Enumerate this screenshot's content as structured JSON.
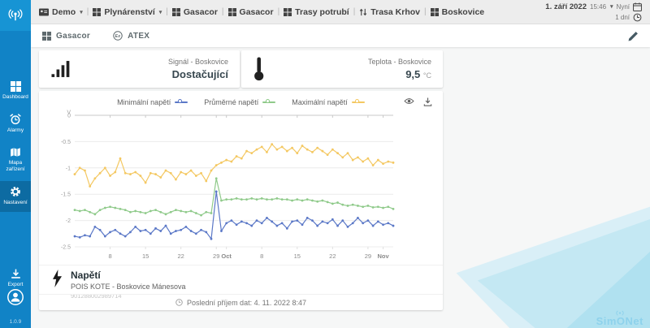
{
  "app": {
    "version": "1.0.9",
    "watermark": "SimONet"
  },
  "ui": {
    "caret": "▾",
    "separator": "|"
  },
  "sidebar": {
    "items": [
      {
        "label": "Dashboard"
      },
      {
        "label": "Alarmy"
      },
      {
        "label": "Mapa zařízení"
      },
      {
        "label": "Nastavení"
      }
    ],
    "export_label": "Export"
  },
  "header": {
    "breadcrumbs": [
      {
        "label": "Demo"
      },
      {
        "label": "Plynárenství"
      },
      {
        "label": "Gasacor"
      },
      {
        "label": "Gasacor"
      },
      {
        "label": "Trasy potrubí"
      },
      {
        "label": "Trasa Krhov"
      },
      {
        "label": "Boskovice"
      }
    ],
    "date": "1. září 2022",
    "time": "15:46",
    "now_label": "Nyní",
    "duration": "1 dní"
  },
  "tabs": [
    {
      "label": "Gasacor"
    },
    {
      "label": "ATEX"
    }
  ],
  "cards": {
    "signal": {
      "title": "Signál - Boskovice",
      "value": "Dostačující"
    },
    "temperature": {
      "title": "Teplota - Boskovice",
      "value": "9,5",
      "unit": "°C"
    }
  },
  "chart_card": {
    "title": "Napětí",
    "subtitle": "POIS KOTE - Boskovice Mánesova",
    "serial": "901288002989714",
    "last_data": "Poslední příjem dat: 4. 11. 2022 8:47"
  },
  "chart_data": {
    "type": "line",
    "unit": "V",
    "ylim": [
      -2.5,
      0
    ],
    "y_ticks": [
      0,
      -0.5,
      -1,
      -1.5,
      -2,
      -2.5
    ],
    "grid": true,
    "legend_position": "top",
    "x_range": "1. září 2022 – 3. listopadu 2022 (denní hodnoty)",
    "x_ticks": [
      {
        "i": 7,
        "label": "8"
      },
      {
        "i": 14,
        "label": "15"
      },
      {
        "i": 21,
        "label": "22"
      },
      {
        "i": 28,
        "label": "29"
      },
      {
        "i": 30,
        "label": "Oct",
        "bold": true
      },
      {
        "i": 37,
        "label": "8"
      },
      {
        "i": 44,
        "label": "15"
      },
      {
        "i": 51,
        "label": "22"
      },
      {
        "i": 58,
        "label": "29"
      },
      {
        "i": 61,
        "label": "Nov",
        "bold": true
      }
    ],
    "series": [
      {
        "name": "Minimální napětí",
        "color": "#5b78c7",
        "values": [
          -2.3,
          -2.32,
          -2.28,
          -2.3,
          -2.12,
          -2.18,
          -2.3,
          -2.22,
          -2.18,
          -2.25,
          -2.3,
          -2.22,
          -2.12,
          -2.2,
          -2.18,
          -2.25,
          -2.15,
          -2.2,
          -2.1,
          -2.25,
          -2.2,
          -2.18,
          -2.12,
          -2.2,
          -2.25,
          -2.18,
          -2.22,
          -2.35,
          -1.45,
          -2.2,
          -2.05,
          -2.0,
          -2.08,
          -2.02,
          -2.05,
          -2.1,
          -2.0,
          -2.05,
          -1.95,
          -2.02,
          -2.1,
          -2.05,
          -2.15,
          -2.02,
          -2.0,
          -2.08,
          -1.95,
          -2.0,
          -2.1,
          -2.02,
          -2.05,
          -1.98,
          -2.1,
          -2.0,
          -2.12,
          -2.05,
          -1.95,
          -2.05,
          -2.0,
          -2.1,
          -2.02,
          -2.08,
          -2.05,
          -2.1
        ]
      },
      {
        "name": "Průměrné napětí",
        "color": "#8fca8a",
        "values": [
          -1.8,
          -1.82,
          -1.8,
          -1.84,
          -1.88,
          -1.8,
          -1.76,
          -1.74,
          -1.76,
          -1.78,
          -1.8,
          -1.84,
          -1.82,
          -1.84,
          -1.86,
          -1.82,
          -1.8,
          -1.84,
          -1.88,
          -1.84,
          -1.8,
          -1.82,
          -1.84,
          -1.82,
          -1.86,
          -1.9,
          -1.84,
          -1.86,
          -1.2,
          -1.62,
          -1.6,
          -1.6,
          -1.58,
          -1.6,
          -1.6,
          -1.58,
          -1.6,
          -1.58,
          -1.6,
          -1.6,
          -1.58,
          -1.6,
          -1.6,
          -1.62,
          -1.6,
          -1.62,
          -1.6,
          -1.62,
          -1.64,
          -1.62,
          -1.65,
          -1.68,
          -1.66,
          -1.7,
          -1.72,
          -1.7,
          -1.72,
          -1.74,
          -1.72,
          -1.75,
          -1.74,
          -1.76,
          -1.74,
          -1.78
        ]
      },
      {
        "name": "Maximální napětí",
        "color": "#f4c862",
        "values": [
          -1.12,
          -1.0,
          -1.05,
          -1.35,
          -1.2,
          -1.1,
          -1.0,
          -1.15,
          -1.08,
          -0.82,
          -1.1,
          -1.12,
          -1.08,
          -1.15,
          -1.28,
          -1.1,
          -1.12,
          -1.18,
          -1.05,
          -1.1,
          -1.22,
          -1.08,
          -1.12,
          -1.05,
          -1.15,
          -1.1,
          -1.25,
          -1.05,
          -0.95,
          -0.9,
          -0.85,
          -0.88,
          -0.78,
          -0.82,
          -0.68,
          -0.72,
          -0.65,
          -0.6,
          -0.7,
          -0.55,
          -0.65,
          -0.6,
          -0.68,
          -0.62,
          -0.72,
          -0.58,
          -0.65,
          -0.7,
          -0.62,
          -0.68,
          -0.75,
          -0.65,
          -0.72,
          -0.8,
          -0.72,
          -0.85,
          -0.8,
          -0.88,
          -0.82,
          -0.95,
          -0.85,
          -0.92,
          -0.88,
          -0.9
        ]
      }
    ]
  }
}
